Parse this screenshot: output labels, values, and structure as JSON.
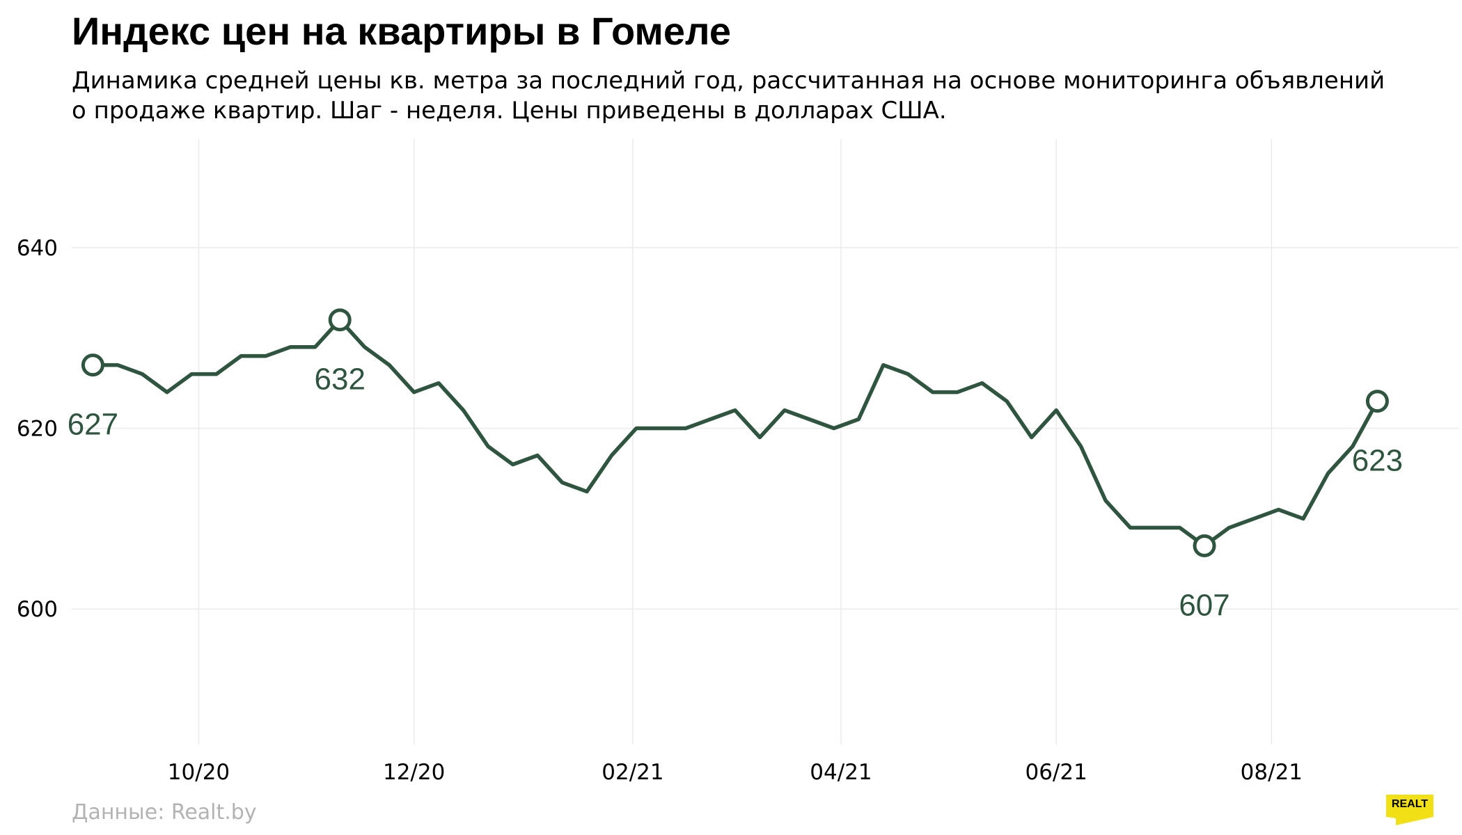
{
  "header": {
    "title": "Индекс цен на квартиры в Гомеле",
    "subtitle": "Динамика средней цены кв. метра за последний год, рассчитанная на основе мониторинга объявлений о продаже квартир. Шаг - неделя. Цены приведены в долларах США."
  },
  "footer": {
    "source": "Данные: Realt.by",
    "logo_text": "REALT"
  },
  "colors": {
    "line": "#2f5540",
    "grid": "#ebebeb",
    "logo_bg": "#f2e017",
    "source_text": "#b3b3b3"
  },
  "chart_data": {
    "type": "line",
    "title": "Индекс цен на квартиры в Гомеле",
    "xlabel": "",
    "ylabel": "",
    "ylim": [
      585,
      652
    ],
    "xlim": [
      "2020-08-26",
      "2021-09-23"
    ],
    "yticks": [
      600,
      620,
      640
    ],
    "xticks": [
      {
        "date": "2020-10-01",
        "label": "10/20"
      },
      {
        "date": "2020-12-01",
        "label": "12/20"
      },
      {
        "date": "2021-02-01",
        "label": "02/21"
      },
      {
        "date": "2021-04-01",
        "label": "04/21"
      },
      {
        "date": "2021-06-01",
        "label": "06/21"
      },
      {
        "date": "2021-08-01",
        "label": "08/21"
      }
    ],
    "grid": true,
    "series": [
      {
        "dates": [
          "2020-09-01",
          "2020-09-08",
          "2020-09-15",
          "2020-09-22",
          "2020-09-29",
          "2020-10-06",
          "2020-10-13",
          "2020-10-20",
          "2020-10-27",
          "2020-11-03",
          "2020-11-10",
          "2020-11-17",
          "2020-11-24",
          "2020-12-01",
          "2020-12-08",
          "2020-12-15",
          "2020-12-22",
          "2020-12-29",
          "2021-01-05",
          "2021-01-12",
          "2021-01-19",
          "2021-01-26",
          "2021-02-02",
          "2021-02-09",
          "2021-02-16",
          "2021-02-23",
          "2021-03-02",
          "2021-03-09",
          "2021-03-16",
          "2021-03-23",
          "2021-03-30",
          "2021-04-06",
          "2021-04-13",
          "2021-04-20",
          "2021-04-27",
          "2021-05-04",
          "2021-05-11",
          "2021-05-18",
          "2021-05-25",
          "2021-06-01",
          "2021-06-08",
          "2021-06-15",
          "2021-06-22",
          "2021-06-29",
          "2021-07-06",
          "2021-07-13",
          "2021-07-20",
          "2021-07-27",
          "2021-08-03",
          "2021-08-10",
          "2021-08-17",
          "2021-08-24",
          "2021-08-31"
        ],
        "values": [
          627,
          627,
          626,
          624,
          626,
          626,
          628,
          628,
          629,
          629,
          632,
          629,
          627,
          624,
          625,
          622,
          618,
          616,
          617,
          614,
          613,
          617,
          620,
          620,
          620,
          621,
          622,
          619,
          622,
          621,
          620,
          621,
          627,
          626,
          624,
          624,
          625,
          623,
          619,
          622,
          618,
          612,
          609,
          609,
          609,
          607,
          609,
          610,
          611,
          610,
          615,
          618,
          623
        ]
      }
    ],
    "annotations": [
      {
        "date": "2020-09-01",
        "value": 627,
        "label": "627"
      },
      {
        "date": "2020-11-10",
        "value": 632,
        "label": "632"
      },
      {
        "date": "2021-07-13",
        "value": 607,
        "label": "607"
      },
      {
        "date": "2021-08-31",
        "value": 623,
        "label": "623"
      }
    ]
  }
}
